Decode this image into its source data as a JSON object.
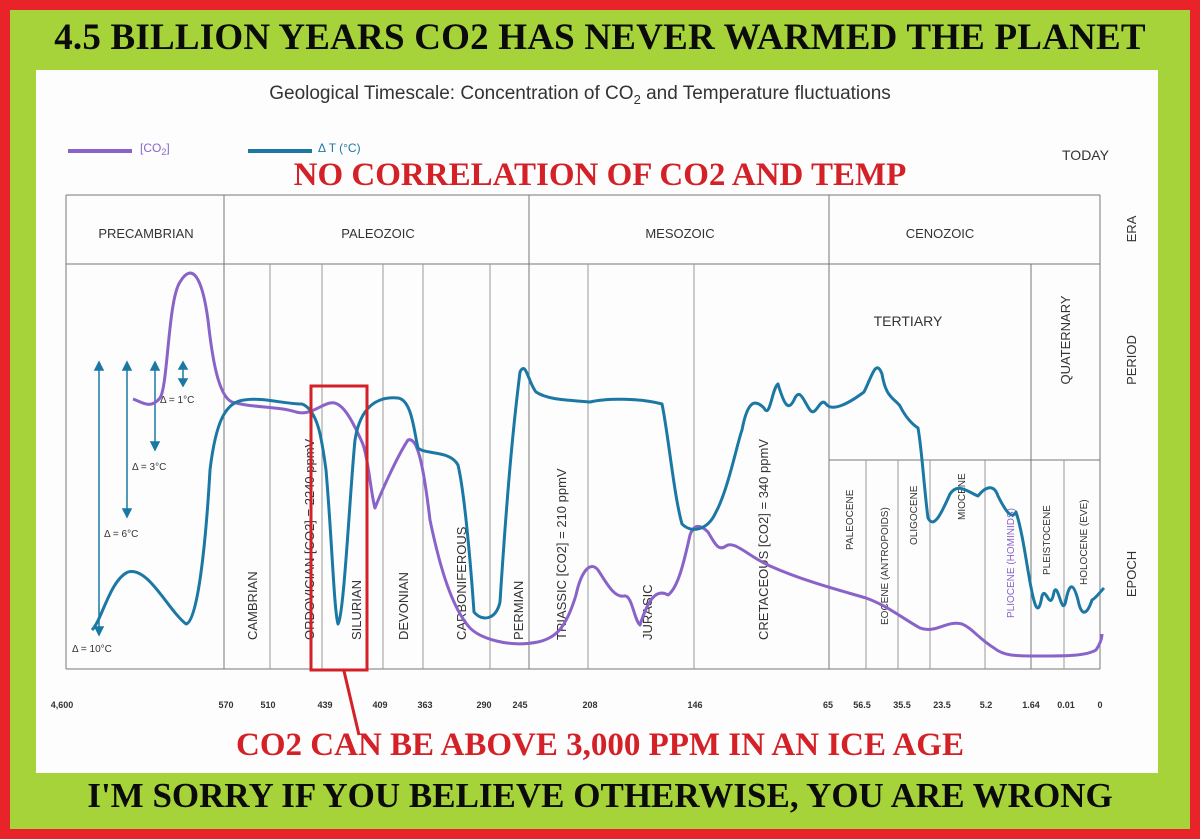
{
  "top_banner": "4.5 BILLION YEARS CO2 HAS NEVER WARMED THE PLANET",
  "bottom_banner": "I'M SORRY IF YOU BELIEVE OTHERWISE, YOU ARE WRONG",
  "caption_top": "NO CORRELATION OF CO2 AND TEMP",
  "caption_bottom": "CO2 CAN BE ABOVE 3,000 PPM IN AN ICE AGE",
  "colors": {
    "co2": "#8a63c8",
    "temp": "#1b78a4",
    "frame": "#e8242a",
    "panel_border": "#a7d33a",
    "highlight": "#d42027"
  },
  "chart_data": {
    "type": "line",
    "title": "Geological Timescale: Concentration of CO",
    "title_sub": "2",
    "title_suffix": " and Temperature fluctuations",
    "today_label": "TODAY",
    "legend": [
      {
        "name": "[CO",
        "sub": "2",
        "suffix": "]",
        "color": "#8a63c8"
      },
      {
        "name": "Δ T (°C)",
        "sub": "",
        "suffix": "",
        "color": "#1b78a4"
      }
    ],
    "row_labels": {
      "era": "ERA",
      "period": "PERIOD",
      "epoch": "EPOCH"
    },
    "x_ticks": [
      "4,600",
      "570",
      "510",
      "439",
      "409",
      "363",
      "290",
      "245",
      "208",
      "146",
      "65",
      "56.5",
      "35.5",
      "23.5",
      "5.2",
      "1.64",
      "0.01",
      "0"
    ],
    "eras": [
      "PRECAMBRIAN",
      "PALEOZOIC",
      "MESOZOIC",
      "CENOZOIC"
    ],
    "periods": [
      "CAMBRIAN",
      "ORDOVICIAN [CO2] = 2240 ppmV",
      "SILURIAN",
      "DEVONIAN",
      "CARBONIFEROUS",
      "PERMIAN",
      "TRIASSIC [CO2] = 210 ppmV",
      "JURASIC",
      "CRETACEOUS [CO2] = 340 ppmV"
    ],
    "tertiary_label": "TERTIARY",
    "quaternary_label": "QUATERNARY",
    "epochs": [
      "PALEOCENE",
      "EOCENE (ANTROPOIDS)",
      "OLIGOCENE",
      "MIOCENE",
      "PLIOCENE (HOMINIDS)",
      "PLEISTOCENE",
      "HOLOCENE (EVE)"
    ],
    "temp_scale": [
      "Δ = 1°C",
      "Δ = 3°C",
      "Δ = 6°C",
      "Δ = 10°C"
    ],
    "highlight_period": "SILURIAN"
  }
}
